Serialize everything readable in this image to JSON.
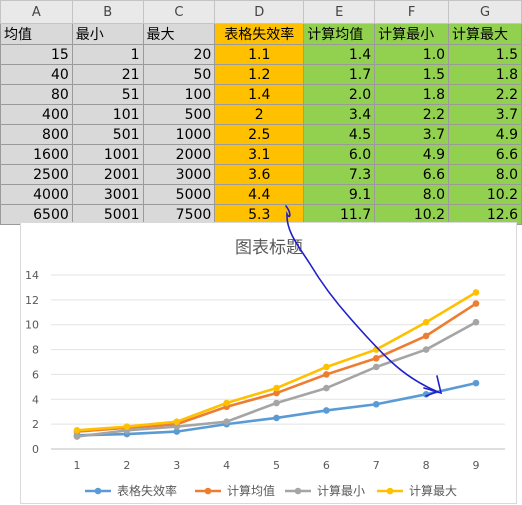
{
  "sheet": {
    "column_letters": [
      "A",
      "B",
      "C",
      "D",
      "E",
      "F",
      "G"
    ],
    "headers": [
      "均值",
      "最小",
      "最大",
      "表格失效率",
      "计算均值",
      "计算最小",
      "计算最大"
    ],
    "rows": [
      [
        "15",
        "1",
        "20",
        "1.1",
        "1.4",
        "1.0",
        "1.5"
      ],
      [
        "40",
        "21",
        "50",
        "1.2",
        "1.7",
        "1.5",
        "1.8"
      ],
      [
        "80",
        "51",
        "100",
        "1.4",
        "2.0",
        "1.8",
        "2.2"
      ],
      [
        "400",
        "101",
        "500",
        "2",
        "3.4",
        "2.2",
        "3.7"
      ],
      [
        "800",
        "501",
        "1000",
        "2.5",
        "4.5",
        "3.7",
        "4.9"
      ],
      [
        "1600",
        "1001",
        "2000",
        "3.1",
        "6.0",
        "4.9",
        "6.6"
      ],
      [
        "2500",
        "2001",
        "3000",
        "3.6",
        "7.3",
        "6.6",
        "8.0"
      ],
      [
        "4000",
        "3001",
        "5000",
        "4.4",
        "9.1",
        "8.0",
        "10.2"
      ],
      [
        "6500",
        "5001",
        "7500",
        "5.3",
        "11.7",
        "10.2",
        "12.6"
      ]
    ],
    "colors": {
      "data_gray": "#d9d9d9",
      "failure_orange": "#ffc000",
      "calc_green": "#92d050"
    }
  },
  "chart_data": {
    "type": "line",
    "title": "图表标题",
    "x": [
      1,
      2,
      3,
      4,
      5,
      6,
      7,
      8,
      9
    ],
    "ylim": [
      0,
      14
    ],
    "yticks": [
      0,
      2,
      4,
      6,
      8,
      10,
      12,
      14
    ],
    "grid": true,
    "legend": "bottom",
    "series": [
      {
        "name": "表格失效率",
        "color": "#5b9bd5",
        "values": [
          1.1,
          1.2,
          1.4,
          2.0,
          2.5,
          3.1,
          3.6,
          4.4,
          5.3
        ]
      },
      {
        "name": "计算均值",
        "color": "#ed7d31",
        "values": [
          1.4,
          1.7,
          2.0,
          3.4,
          4.5,
          6.0,
          7.3,
          9.1,
          11.7
        ]
      },
      {
        "name": "计算最小",
        "color": "#a5a5a5",
        "values": [
          1.0,
          1.5,
          1.8,
          2.2,
          3.7,
          4.9,
          6.6,
          8.0,
          10.2
        ]
      },
      {
        "name": "计算最大",
        "color": "#ffc000",
        "values": [
          1.5,
          1.8,
          2.2,
          3.7,
          4.9,
          6.6,
          8.0,
          10.2,
          12.6
        ]
      }
    ]
  },
  "annotation": {
    "color": "#1f1fcc",
    "shape": "hand-drawn-arrow"
  }
}
